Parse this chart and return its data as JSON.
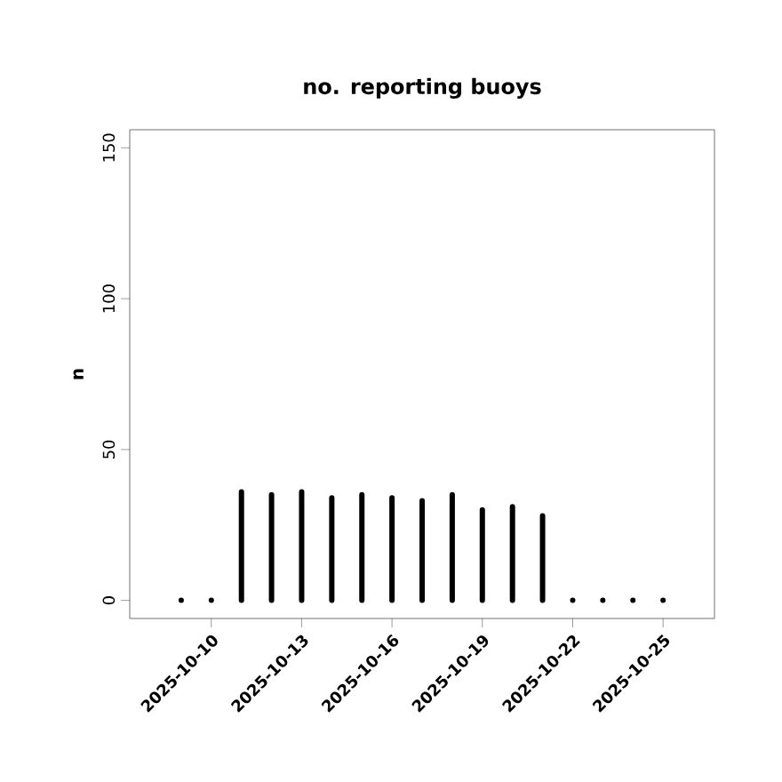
{
  "chart_data": {
    "type": "bar",
    "title": "no. reporting buoys",
    "ylabel": "n",
    "color": "#000000",
    "x": [
      "2025-10-09",
      "2025-10-10",
      "2025-10-11",
      "2025-10-12",
      "2025-10-13",
      "2025-10-14",
      "2025-10-15",
      "2025-10-16",
      "2025-10-17",
      "2025-10-18",
      "2025-10-19",
      "2025-10-20",
      "2025-10-21",
      "2025-10-22",
      "2025-10-23",
      "2025-10-24",
      "2025-10-25"
    ],
    "values": [
      0,
      0,
      36,
      35,
      36,
      34,
      35,
      34,
      33,
      35,
      30,
      31,
      28,
      0,
      0,
      0,
      0
    ],
    "xlim": [
      "2025-10-07T07:00",
      "2025-10-26T17:00"
    ],
    "xticks": [
      {
        "value": "2025-10-10",
        "label": "2025-10-10"
      },
      {
        "value": "2025-10-13",
        "label": "2025-10-13"
      },
      {
        "value": "2025-10-16",
        "label": "2025-10-16"
      },
      {
        "value": "2025-10-19",
        "label": "2025-10-19"
      },
      {
        "value": "2025-10-22",
        "label": "2025-10-22"
      },
      {
        "value": "2025-10-25",
        "label": "2025-10-25"
      }
    ],
    "ylim": [
      -6,
      156
    ],
    "yticks": [
      0,
      50,
      100,
      150
    ]
  }
}
